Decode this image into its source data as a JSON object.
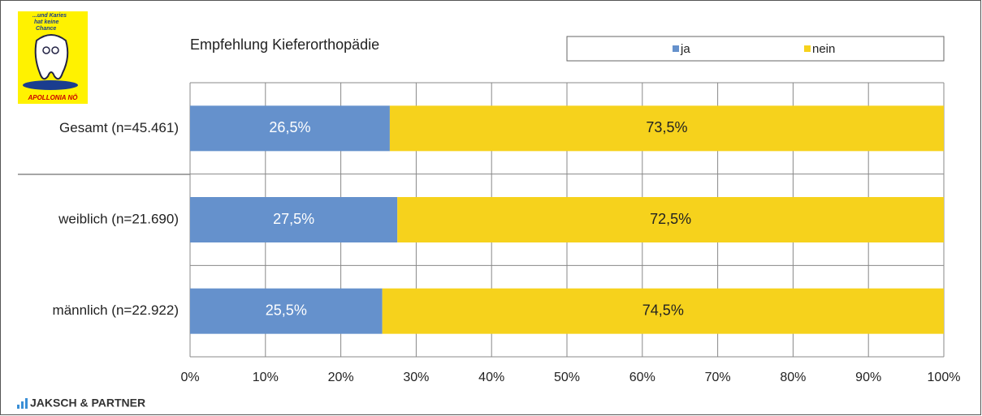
{
  "logo": {
    "tagline": [
      "...und Karies",
      "hat keine",
      "Chance"
    ],
    "name": "APOLLONIA NÖ"
  },
  "footer": "JAKSCH & PARTNER",
  "chart_data": {
    "type": "stacked-barh",
    "title": "Empfehlung  Kieferorthopädie",
    "categories": [
      "Gesamt (n=45.461)",
      "weiblich (n=21.690)",
      "männlich (n=22.922)"
    ],
    "series": [
      {
        "name": "ja",
        "color": "#6591cc",
        "values": [
          26.5,
          27.5,
          25.5
        ],
        "value_labels": [
          "26,5%",
          "27,5%",
          "25,5%"
        ]
      },
      {
        "name": "nein",
        "color": "#f6d21c",
        "values": [
          73.5,
          72.5,
          74.5
        ],
        "value_labels": [
          "73,5%",
          "72,5%",
          "74,5%"
        ]
      }
    ],
    "xlim": [
      0,
      100
    ],
    "xticks": [
      {
        "value": 0,
        "label": "0%"
      },
      {
        "value": 10,
        "label": "10%"
      },
      {
        "value": 20,
        "label": "20%"
      },
      {
        "value": 30,
        "label": "30%"
      },
      {
        "value": 40,
        "label": "40%"
      },
      {
        "value": 50,
        "label": "50%"
      },
      {
        "value": 60,
        "label": "60%"
      },
      {
        "value": 70,
        "label": "70%"
      },
      {
        "value": 80,
        "label": "80%"
      },
      {
        "value": 90,
        "label": "90%"
      },
      {
        "value": 100,
        "label": "100%"
      }
    ],
    "grid": true,
    "legend": "top-right"
  }
}
